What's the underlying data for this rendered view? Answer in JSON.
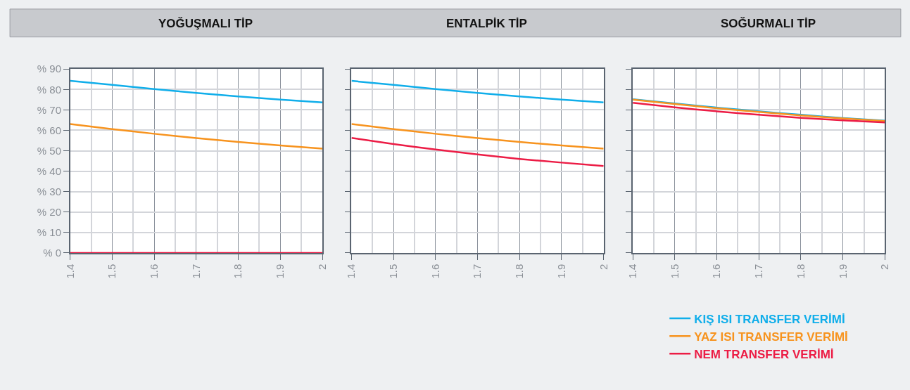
{
  "chart_data": [
    {
      "type": "line",
      "title": "YOĞUŞMALI TİP",
      "x": [
        1.4,
        1.5,
        1.6,
        1.7,
        1.8,
        1.9,
        2
      ],
      "xlim": [
        1.4,
        2
      ],
      "xticks": [
        1.4,
        {
          "value": 1.45,
          "label": null
        },
        1.5,
        {
          "value": 1.55,
          "label": null
        },
        1.6,
        {
          "value": 1.65,
          "label": null
        },
        1.7,
        {
          "value": 1.75,
          "label": null
        },
        1.8,
        {
          "value": 1.85,
          "label": null
        },
        1.9,
        {
          "value": 1.95,
          "label": null
        },
        2
      ],
      "ylim": [
        0,
        90
      ],
      "yticks": [
        {
          "value": 0,
          "label": "% 0"
        },
        {
          "value": 10,
          "label": "% 10"
        },
        {
          "value": 20,
          "label": "% 20"
        },
        {
          "value": 30,
          "label": "% 30"
        },
        {
          "value": 40,
          "label": "% 40"
        },
        {
          "value": 50,
          "label": "% 50"
        },
        {
          "value": 60,
          "label": "% 60"
        },
        {
          "value": 70,
          "label": "% 70"
        },
        {
          "value": 80,
          "label": "% 80"
        },
        {
          "value": 90,
          "label": "% 90"
        }
      ],
      "grid": true,
      "line_style": "solid",
      "series": [
        {
          "color": "#10aeea",
          "values": [
            84.2,
            82.2,
            80.2,
            78.3,
            76.6,
            75.0,
            73.6
          ]
        },
        {
          "color": "#f7931e",
          "values": [
            63.1,
            60.6,
            58.3,
            56.2,
            54.3,
            52.6,
            51.0
          ]
        },
        {
          "color": "#ec1c45",
          "values": [
            0,
            0,
            0,
            0,
            0,
            0,
            0
          ]
        }
      ]
    },
    {
      "type": "line",
      "title": "ENTALPİK TİP",
      "x": [
        1.4,
        1.5,
        1.6,
        1.7,
        1.8,
        1.9,
        2
      ],
      "xlim": [
        1.4,
        2
      ],
      "xticks": [
        1.4,
        {
          "value": 1.45,
          "label": null
        },
        1.5,
        {
          "value": 1.55,
          "label": null
        },
        1.6,
        {
          "value": 1.65,
          "label": null
        },
        1.7,
        {
          "value": 1.75,
          "label": null
        },
        1.8,
        {
          "value": 1.85,
          "label": null
        },
        1.9,
        {
          "value": 1.95,
          "label": null
        },
        2
      ],
      "ylim": [
        0,
        90
      ],
      "yticks": [
        {
          "value": 0,
          "label": null
        },
        {
          "value": 10,
          "label": null
        },
        {
          "value": 20,
          "label": null
        },
        {
          "value": 30,
          "label": null
        },
        {
          "value": 40,
          "label": null
        },
        {
          "value": 50,
          "label": null
        },
        {
          "value": 60,
          "label": null
        },
        {
          "value": 70,
          "label": null
        },
        {
          "value": 80,
          "label": null
        },
        {
          "value": 90,
          "label": null
        }
      ],
      "tick_labels": "x",
      "grid": true,
      "line_style": "solid",
      "series": [
        {
          "color": "#10aeea",
          "values": [
            84.2,
            82.2,
            80.2,
            78.3,
            76.6,
            75.0,
            73.6
          ]
        },
        {
          "color": "#f7931e",
          "values": [
            63.1,
            60.6,
            58.3,
            56.2,
            54.3,
            52.6,
            51.0
          ]
        },
        {
          "color": "#ec1c45",
          "values": [
            56.3,
            53.3,
            50.6,
            48.2,
            46.0,
            44.2,
            42.5
          ]
        }
      ]
    },
    {
      "type": "line",
      "title": "SOĞURMALI TİP",
      "x": [
        1.4,
        1.5,
        1.6,
        1.7,
        1.8,
        1.9,
        2
      ],
      "xlim": [
        1.4,
        2
      ],
      "xticks": [
        1.4,
        {
          "value": 1.45,
          "label": null
        },
        1.5,
        {
          "value": 1.55,
          "label": null
        },
        1.6,
        {
          "value": 1.65,
          "label": null
        },
        1.7,
        {
          "value": 1.75,
          "label": null
        },
        1.8,
        {
          "value": 1.85,
          "label": null
        },
        1.9,
        {
          "value": 1.95,
          "label": null
        },
        2
      ],
      "ylim": [
        0,
        90
      ],
      "yticks": [
        {
          "value": 0,
          "label": null
        },
        {
          "value": 10,
          "label": null
        },
        {
          "value": 20,
          "label": null
        },
        {
          "value": 30,
          "label": null
        },
        {
          "value": 40,
          "label": null
        },
        {
          "value": 50,
          "label": null
        },
        {
          "value": 60,
          "label": null
        },
        {
          "value": 70,
          "label": null
        },
        {
          "value": 80,
          "label": null
        },
        {
          "value": 90,
          "label": null
        }
      ],
      "tick_labels": "x",
      "grid": true,
      "line_style": "solid",
      "legend": "bottom",
      "series": [
        {
          "name": "KIŞ ISI TRANSFER VERİMİ",
          "color": "#10aeea",
          "values": [
            75.2,
            73.1,
            71.1,
            69.3,
            67.6,
            66.0,
            64.7
          ]
        },
        {
          "name": "YAZ ISI TRANSFER VERİMİ",
          "color": "#f7931e",
          "values": [
            75.0,
            72.9,
            70.8,
            69.0,
            67.3,
            65.8,
            64.5
          ]
        },
        {
          "name": "NEM TRANSFER VERİMİ",
          "color": "#ec1c45",
          "values": [
            73.5,
            71.2,
            69.3,
            67.6,
            66.1,
            64.9,
            63.8
          ]
        }
      ]
    }
  ]
}
